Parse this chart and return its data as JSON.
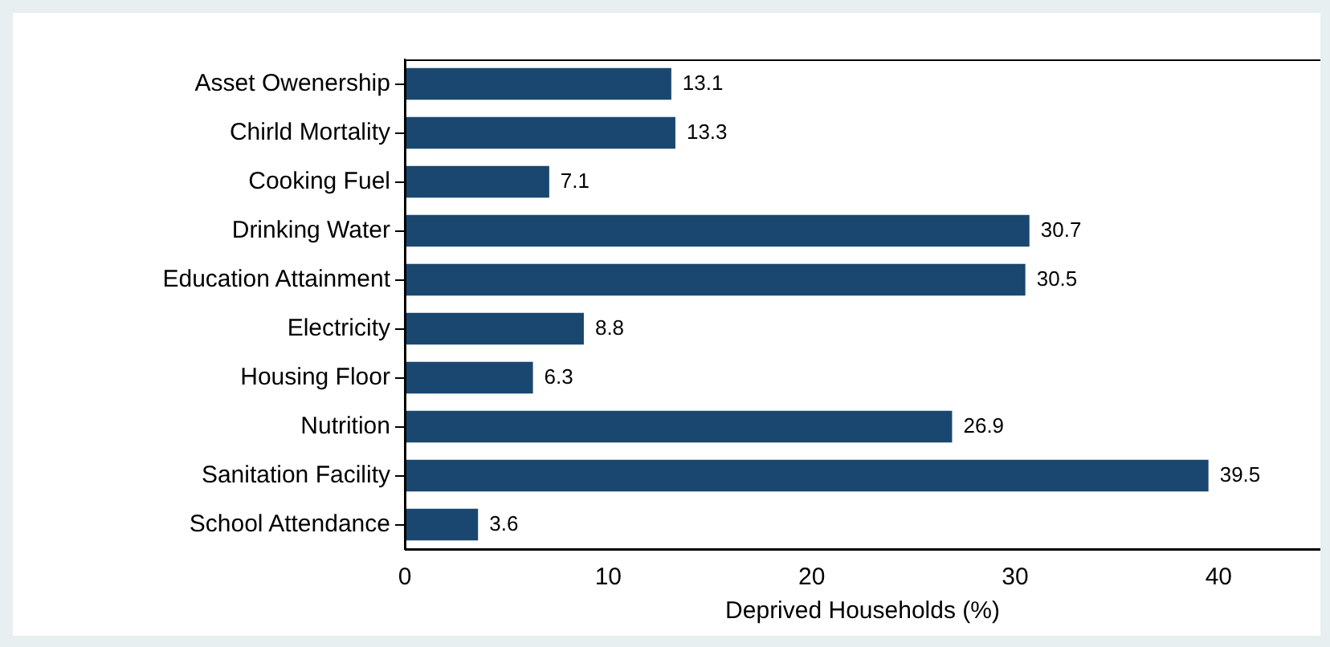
{
  "chart_data": {
    "type": "bar",
    "orientation": "horizontal",
    "xlabel": "Deprived Households (%)",
    "categories": [
      "Asset Owenership",
      "Chirld Mortality",
      "Cooking Fuel",
      "Drinking Water",
      "Education Attainment",
      "Electricity",
      "Housing Floor",
      "Nutrition",
      "Sanitation Facility",
      "School Attendance"
    ],
    "values": [
      13.1,
      13.3,
      7.1,
      30.7,
      30.5,
      8.8,
      6.3,
      26.9,
      39.5,
      3.6
    ],
    "color": "#1a476f",
    "xlim": [
      0,
      45
    ],
    "xticks": [
      0,
      10,
      20,
      30,
      40
    ],
    "grid": false,
    "data_labels": true
  }
}
